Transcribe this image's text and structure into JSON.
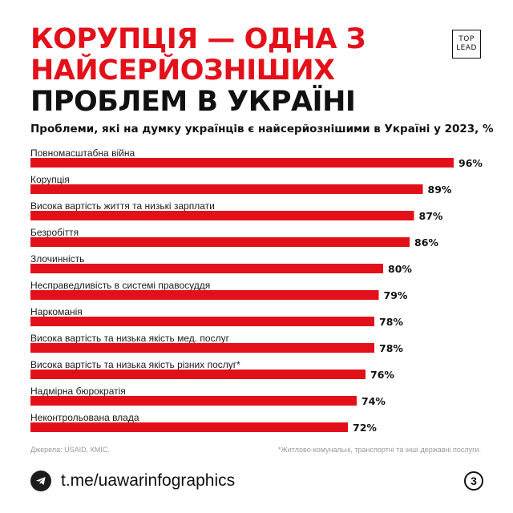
{
  "header": {
    "title_lines": [
      "КОРУПЦІЯ — ОДНА З",
      "НАЙСЕРЙОЗНІШИХ",
      "ПРОБЛЕМ В УКРАЇНІ"
    ],
    "logo_top": "TOP",
    "logo_bottom": "LEAD"
  },
  "colors": {
    "accent": "#e3101a",
    "text": "#111111",
    "muted": "#9a9a9a"
  },
  "chart_data": {
    "type": "bar",
    "orientation": "horizontal",
    "title": "Проблеми, які на думку українців є найсерйознішими в Україні у 2023, %",
    "categories": [
      "Повномасштабна війна",
      "Корупція",
      "Висока вартість життя та низькі зарплати",
      "Безробіття",
      "Злочинність",
      "Несправедливість в системі правосуддя",
      "Наркоманія",
      "Висока вартість та низька якість мед. послуг",
      "Висока вартість та низька якість різних послуг*",
      "Надмірна бюрократія",
      "Неконтрольована влада"
    ],
    "values": [
      96,
      89,
      87,
      86,
      80,
      79,
      78,
      78,
      76,
      74,
      72
    ],
    "value_labels": [
      "96%",
      "89%",
      "87%",
      "86%",
      "80%",
      "79%",
      "78%",
      "78%",
      "76%",
      "74%",
      "72%"
    ],
    "bar_color": "#e3101a",
    "legend": "none",
    "grid": false
  },
  "footer": {
    "source": "Джерела: USAID, КМІС.",
    "note": "*Житлово-комунальні, транспортні та інші державні послуги.",
    "telegram_icon": "telegram-icon",
    "handle": "t.me/uawarinfographics",
    "page_number": "3"
  }
}
